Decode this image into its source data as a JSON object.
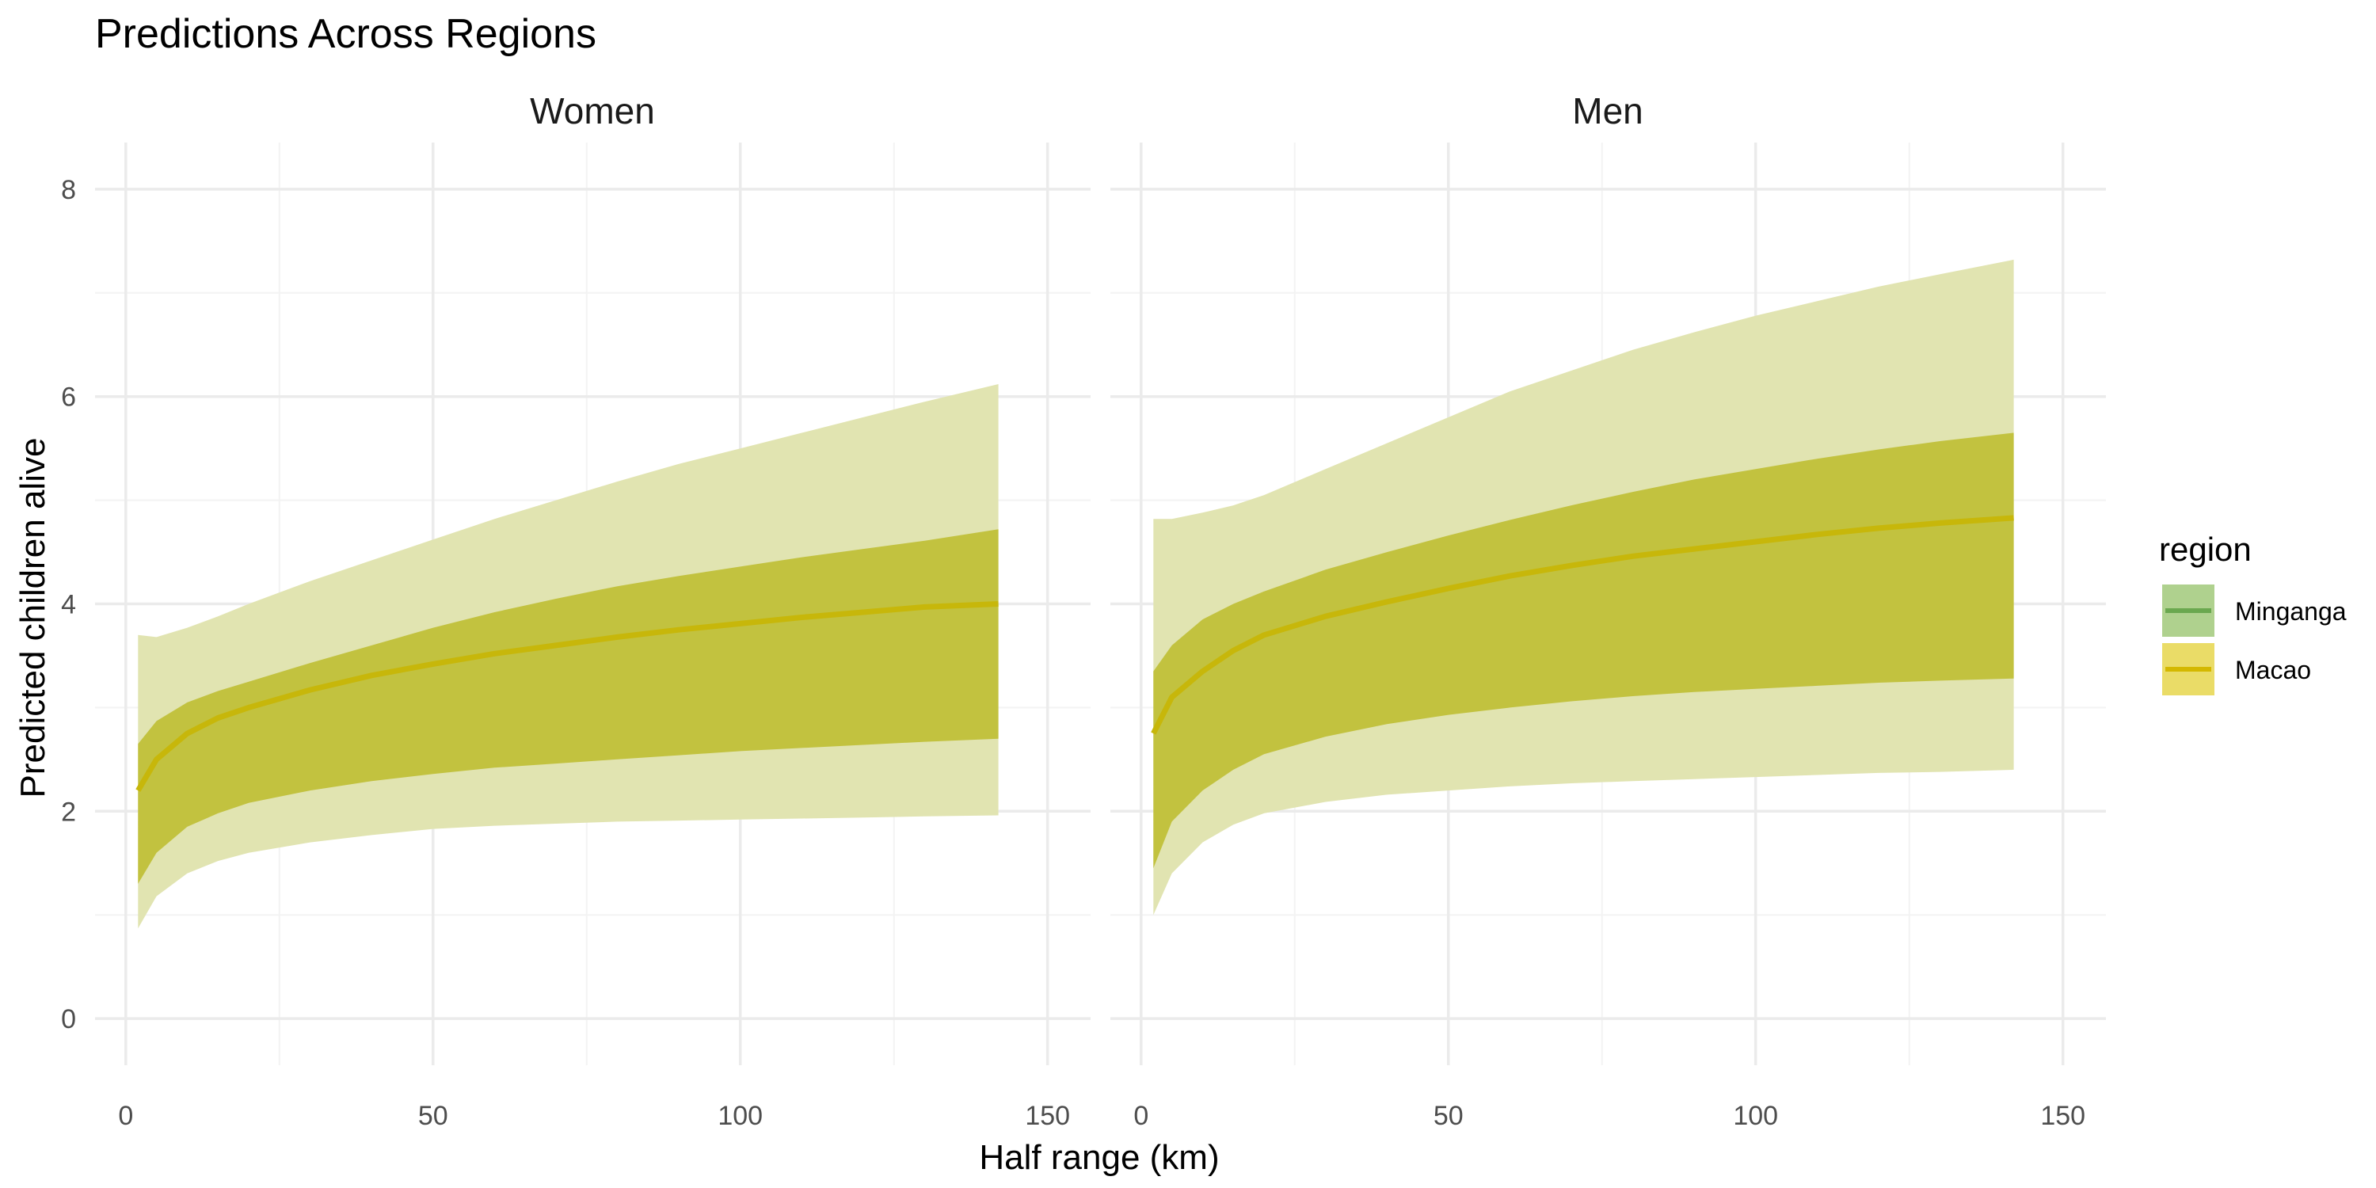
{
  "chart_data": {
    "type": "area",
    "title": "Predictions Across Regions",
    "xlabel": "Half range (km)",
    "ylabel": "Predicted children alive",
    "xlim": [
      -5,
      157
    ],
    "ylim": [
      -0.45,
      8.45
    ],
    "xticks": [
      0,
      50,
      100,
      150
    ],
    "yticks": [
      0,
      2,
      4,
      6,
      8
    ],
    "grid": true,
    "legend": {
      "title": "region",
      "position": "right",
      "entries": [
        {
          "label": "Minganga",
          "color": "#6aa84f"
        },
        {
          "label": "Macao",
          "color": "#d4b800"
        }
      ]
    },
    "x": [
      2,
      5,
      10,
      15,
      20,
      30,
      40,
      50,
      60,
      70,
      80,
      90,
      100,
      110,
      120,
      130,
      142
    ],
    "panels": [
      {
        "name": "Women",
        "series": [
          {
            "name": "Macao",
            "mean": [
              2.2,
              2.5,
              2.75,
              2.9,
              3.0,
              3.17,
              3.31,
              3.42,
              3.52,
              3.6,
              3.68,
              3.75,
              3.81,
              3.87,
              3.92,
              3.97,
              4.0
            ],
            "ci_lower": [
              1.3,
              1.6,
              1.85,
              1.98,
              2.08,
              2.2,
              2.29,
              2.36,
              2.42,
              2.46,
              2.5,
              2.54,
              2.58,
              2.61,
              2.64,
              2.67,
              2.7
            ],
            "ci_upper": [
              2.65,
              2.87,
              3.05,
              3.16,
              3.25,
              3.43,
              3.6,
              3.77,
              3.92,
              4.05,
              4.17,
              4.27,
              4.36,
              4.45,
              4.53,
              4.61,
              4.72
            ],
            "pi_lower": [
              0.87,
              1.18,
              1.4,
              1.52,
              1.6,
              1.7,
              1.77,
              1.83,
              1.86,
              1.88,
              1.9,
              1.91,
              1.92,
              1.93,
              1.94,
              1.95,
              1.96
            ],
            "pi_upper": [
              3.7,
              3.68,
              3.77,
              3.88,
              4.0,
              4.22,
              4.42,
              4.62,
              4.82,
              5.0,
              5.18,
              5.35,
              5.5,
              5.65,
              5.8,
              5.95,
              6.12
            ]
          }
        ]
      },
      {
        "name": "Men",
        "series": [
          {
            "name": "Macao",
            "mean": [
              2.75,
              3.1,
              3.35,
              3.55,
              3.7,
              3.88,
              4.02,
              4.15,
              4.27,
              4.37,
              4.46,
              4.53,
              4.6,
              4.67,
              4.73,
              4.78,
              4.83
            ],
            "ci_lower": [
              1.45,
              1.9,
              2.2,
              2.4,
              2.55,
              2.72,
              2.84,
              2.93,
              3.0,
              3.06,
              3.11,
              3.15,
              3.18,
              3.21,
              3.24,
              3.26,
              3.28
            ],
            "ci_upper": [
              3.35,
              3.6,
              3.85,
              4.0,
              4.12,
              4.33,
              4.5,
              4.66,
              4.81,
              4.95,
              5.08,
              5.2,
              5.3,
              5.4,
              5.49,
              5.57,
              5.65
            ],
            "pi_lower": [
              1.0,
              1.4,
              1.7,
              1.87,
              1.98,
              2.09,
              2.16,
              2.2,
              2.24,
              2.27,
              2.29,
              2.31,
              2.33,
              2.35,
              2.37,
              2.38,
              2.4
            ],
            "pi_upper": [
              4.82,
              4.82,
              4.88,
              4.95,
              5.05,
              5.3,
              5.55,
              5.8,
              6.05,
              6.25,
              6.45,
              6.62,
              6.78,
              6.92,
              7.06,
              7.18,
              7.32
            ]
          }
        ]
      }
    ]
  },
  "colors": {
    "pi_band": "#e1e4b1",
    "ci_band": "#c2c23f",
    "mean_line": "#c7b70a",
    "minganga_fill": "#afd18e",
    "minganga_line": "#6aa84f",
    "macao_fill": "#eadc67",
    "macao_line": "#d4b800"
  }
}
